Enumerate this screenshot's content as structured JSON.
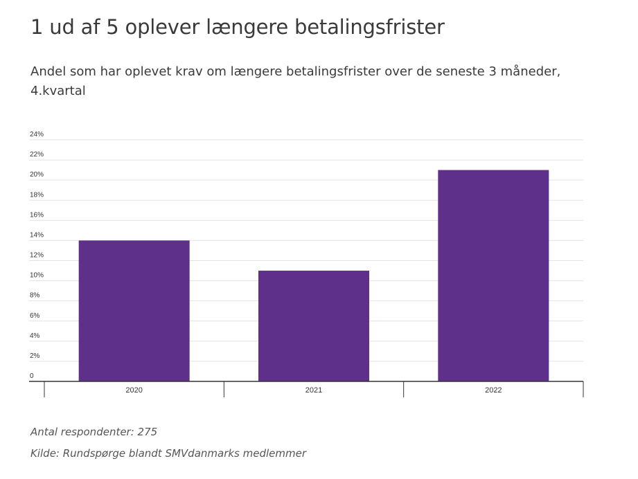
{
  "title": "1 ud af 5 oplever længere betalingsfrister",
  "subtitle": "Andel som har oplevet krav om længere betalingsfrister over de seneste 3 måneder, 4.kvartal",
  "footnotes": {
    "respondents": "Antal respondenter: 275",
    "source": "Kilde: Rundspørge blandt SMVdanmarks medlemmer"
  },
  "colors": {
    "bar": "#5e308a",
    "grid": "#e2e2e2",
    "axis": "#333333"
  },
  "chart_data": {
    "type": "bar",
    "categories": [
      "2020",
      "2021",
      "2022"
    ],
    "values": [
      14,
      11,
      21
    ],
    "ylim": [
      0,
      24
    ],
    "yticks": [
      {
        "value": 0,
        "label": "0"
      },
      {
        "value": 2,
        "label": "2%"
      },
      {
        "value": 4,
        "label": "4%"
      },
      {
        "value": 6,
        "label": "6%"
      },
      {
        "value": 8,
        "label": "8%"
      },
      {
        "value": 10,
        "label": "10%"
      },
      {
        "value": 12,
        "label": "12%"
      },
      {
        "value": 14,
        "label": "14%"
      },
      {
        "value": 16,
        "label": "16%"
      },
      {
        "value": 18,
        "label": "18%"
      },
      {
        "value": 20,
        "label": "20%"
      },
      {
        "value": 22,
        "label": "22%"
      },
      {
        "value": 24,
        "label": "24%"
      }
    ],
    "grid": true,
    "xlabel": "",
    "ylabel": ""
  }
}
